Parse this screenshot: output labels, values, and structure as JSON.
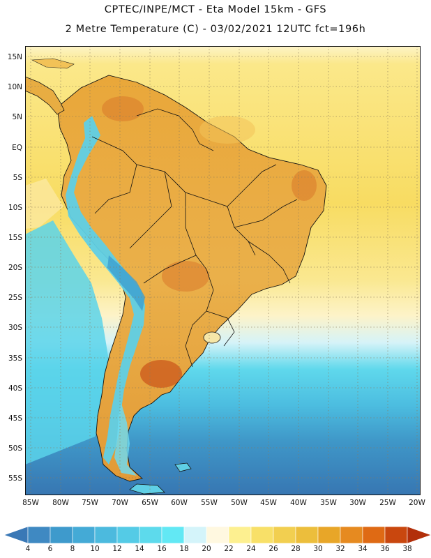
{
  "header": {
    "line1": "CPTEC/INPE/MCT -  Eta Model 15km - GFS",
    "line2": "2 Metre Temperature (C) - 03/02/2021 12UTC fct=196h"
  },
  "axes": {
    "lat_labels": [
      "15N",
      "10N",
      "5N",
      "EQ",
      "5S",
      "10S",
      "15S",
      "20S",
      "25S",
      "30S",
      "35S",
      "40S",
      "45S",
      "50S",
      "55S"
    ],
    "lon_labels": [
      "85W",
      "80W",
      "75W",
      "70W",
      "65W",
      "60W",
      "55W",
      "50W",
      "45W",
      "40W",
      "35W",
      "30W",
      "25W",
      "20W"
    ]
  },
  "colorbar": {
    "ticks": [
      "4",
      "6",
      "8",
      "10",
      "12",
      "14",
      "16",
      "18",
      "20",
      "22",
      "24",
      "26",
      "28",
      "30",
      "32",
      "34",
      "36",
      "38"
    ],
    "colors": [
      "#3a78b6",
      "#3f89c2",
      "#3e9acc",
      "#44aad6",
      "#4cbade",
      "#54cbe6",
      "#5ddaec",
      "#62e8f4",
      "#d4f4fa",
      "#fff8e0",
      "#fdf090",
      "#f8e068",
      "#f2cf50",
      "#ecbe3c",
      "#e8a628",
      "#e68a20",
      "#df6a14",
      "#c9470e",
      "#b22f0a"
    ]
  },
  "map": {
    "ocean_cold": "#3f87c1",
    "ocean_cool": "#55c8e6",
    "ocean_warm": "#fbe07a",
    "land_hot": "#e8a83a",
    "andes_cold": "#5fcfe6"
  }
}
